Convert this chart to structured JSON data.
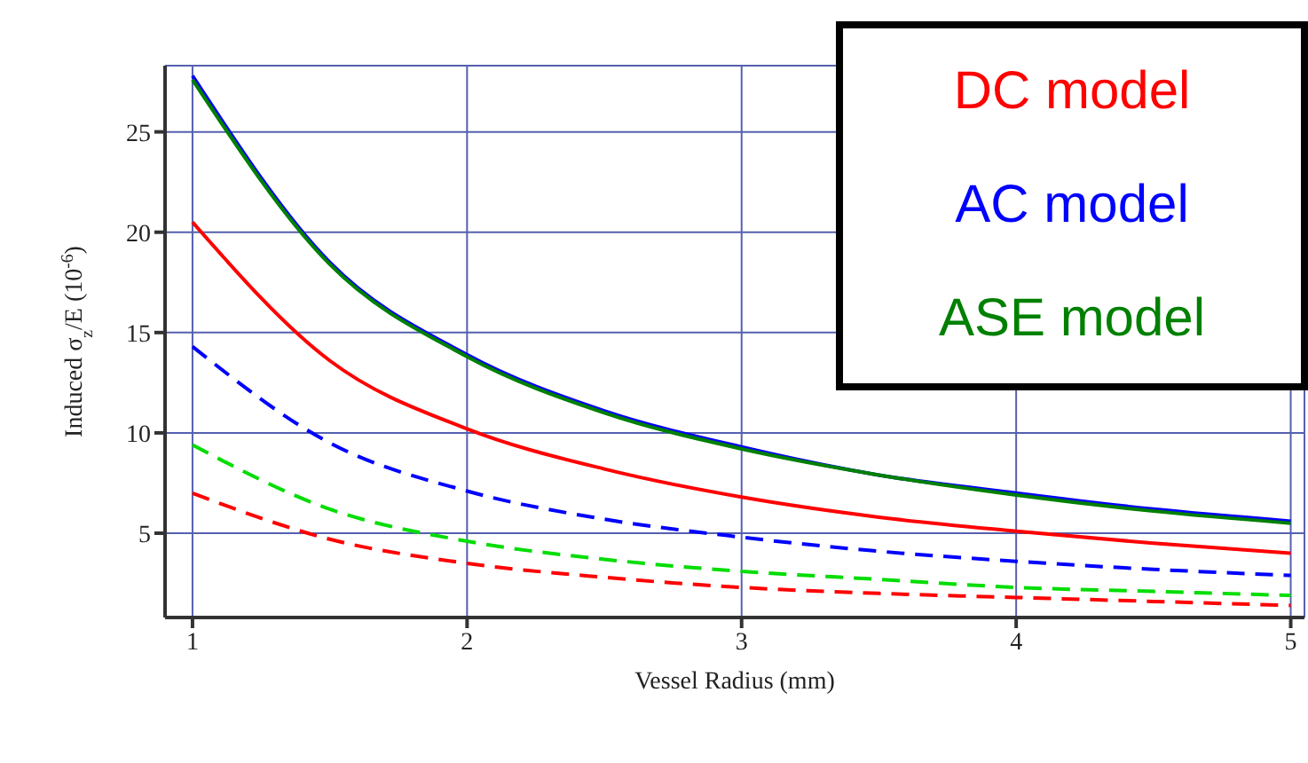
{
  "chart_data": {
    "type": "line",
    "xlabel": "Vessel Radius (mm)",
    "ylabel": "Induced σ$_{z}$/E (10$^{-6}$)",
    "x": [
      1,
      1.5,
      2,
      2.5,
      3,
      3.5,
      4,
      4.5,
      5
    ],
    "series": [
      {
        "name": "DC model",
        "color": "#ff0000",
        "line_style": "solid",
        "values": [
          20.5,
          13.6,
          10.2,
          8.2,
          6.8,
          5.8,
          5.1,
          4.5,
          4.0
        ]
      },
      {
        "name": "AC model",
        "color": "#0000ff",
        "line_style": "solid",
        "values": [
          27.8,
          18.5,
          13.9,
          11.1,
          9.3,
          7.9,
          7.0,
          6.2,
          5.6
        ]
      },
      {
        "name": "ASE model",
        "color": "#008000",
        "line_style": "solid",
        "values": [
          27.6,
          18.4,
          13.8,
          11.0,
          9.2,
          7.9,
          6.9,
          6.1,
          5.5
        ]
      },
      {
        "color": "#0000ff",
        "line_style": "dashed",
        "values": [
          14.3,
          9.5,
          7.1,
          5.7,
          4.8,
          4.1,
          3.6,
          3.2,
          2.9
        ]
      },
      {
        "color": "#00dd00",
        "line_style": "dashed",
        "values": [
          9.4,
          6.2,
          4.6,
          3.7,
          3.1,
          2.7,
          2.3,
          2.1,
          1.9
        ]
      },
      {
        "color": "#ff0000",
        "line_style": "dashed",
        "values": [
          7.0,
          4.7,
          3.5,
          2.8,
          2.3,
          2.0,
          1.8,
          1.6,
          1.4
        ]
      }
    ],
    "xlim": [
      0.9,
      5.05
    ],
    "xticks": [
      1,
      2,
      3,
      4,
      5
    ],
    "ylim": [
      0.8,
      28.3
    ],
    "yticks": [
      5,
      10,
      15,
      20,
      25
    ],
    "grid": true,
    "legend": "top right",
    "marker": "none"
  }
}
